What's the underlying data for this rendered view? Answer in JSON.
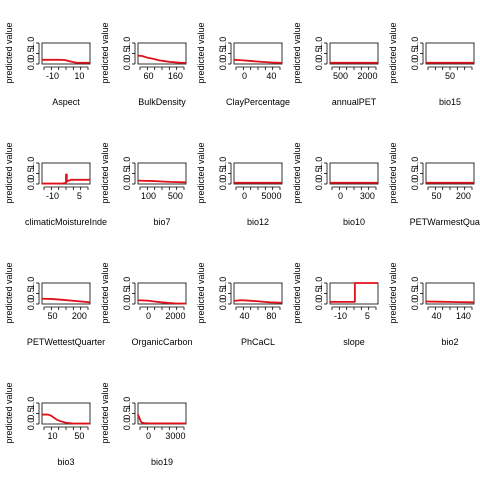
{
  "ylabel": "predicted value",
  "y_ticks": [
    "0.0",
    "0.5",
    "1.0"
  ],
  "colors": {
    "curve": "#e0101a",
    "axis": "#000000"
  },
  "chart_data": [
    {
      "type": "line",
      "xlabel": "Aspect",
      "ylabel": "predicted value",
      "ylim": [
        0,
        1
      ],
      "x_ticks": [
        "-10",
        "10"
      ],
      "xlim": [
        -20,
        22
      ],
      "x": [
        -20,
        -10,
        -5,
        0,
        5,
        10,
        15,
        22
      ],
      "y": [
        0.2,
        0.2,
        0.2,
        0.19,
        0.12,
        0.06,
        0.06,
        0.06
      ]
    },
    {
      "type": "line",
      "xlabel": "BulkDensity",
      "ylabel": "predicted value",
      "ylim": [
        0,
        1
      ],
      "x_ticks": [
        "60",
        "160"
      ],
      "xlim": [
        25,
        200
      ],
      "x": [
        25,
        40,
        60,
        80,
        100,
        120,
        140,
        160,
        180,
        200
      ],
      "y": [
        0.4,
        0.38,
        0.3,
        0.25,
        0.18,
        0.14,
        0.1,
        0.08,
        0.06,
        0.05
      ]
    },
    {
      "type": "line",
      "xlabel": "ClayPercentage",
      "ylabel": "predicted value",
      "ylim": [
        0,
        1
      ],
      "x_ticks": [
        "0",
        "40"
      ],
      "xlim": [
        -15,
        80
      ],
      "x": [
        -15,
        0,
        20,
        40,
        60,
        80
      ],
      "y": [
        0.2,
        0.18,
        0.14,
        0.1,
        0.07,
        0.05
      ]
    },
    {
      "type": "line",
      "xlabel": "annualPET",
      "ylabel": "predicted value",
      "ylim": [
        0,
        1
      ],
      "x_ticks": [
        "500",
        "2000"
      ],
      "xlim": [
        0,
        2400
      ],
      "x": [
        0,
        600,
        1200,
        1800,
        2400
      ],
      "y": [
        0.06,
        0.06,
        0.06,
        0.06,
        0.06
      ]
    },
    {
      "type": "line",
      "xlabel": "bio15",
      "ylabel": "predicted value",
      "ylim": [
        0,
        1
      ],
      "x_ticks": [
        "50"
      ],
      "xlim": [
        0,
        140
      ],
      "x": [
        0,
        35,
        70,
        105,
        140
      ],
      "y": [
        0.06,
        0.06,
        0.06,
        0.06,
        0.06
      ]
    },
    {
      "type": "line",
      "xlabel": "climaticMoistureInde",
      "ylabel": "predicted value",
      "ylim": [
        0,
        1
      ],
      "x_ticks": [
        "-10",
        "5"
      ],
      "xlim": [
        -18,
        12
      ],
      "x": [
        -18,
        -10,
        -5,
        -3,
        -3,
        -2.5,
        -2.5,
        0,
        5,
        12
      ],
      "y": [
        0.02,
        0.02,
        0.03,
        0.05,
        0.45,
        0.45,
        0.12,
        0.2,
        0.2,
        0.2
      ]
    },
    {
      "type": "line",
      "xlabel": "bio7",
      "ylabel": "predicted value",
      "ylim": [
        0,
        1
      ],
      "x_ticks": [
        "100",
        "500"
      ],
      "xlim": [
        0,
        600
      ],
      "x": [
        0,
        100,
        200,
        300,
        400,
        500,
        600
      ],
      "y": [
        0.16,
        0.15,
        0.14,
        0.12,
        0.1,
        0.09,
        0.08
      ]
    },
    {
      "type": "line",
      "xlabel": "bio12",
      "ylabel": "predicted value",
      "ylim": [
        0,
        1
      ],
      "x_ticks": [
        "0",
        "5000"
      ],
      "xlim": [
        -1500,
        8500
      ],
      "x": [
        -1500,
        1000,
        3500,
        6000,
        8500
      ],
      "y": [
        0.06,
        0.06,
        0.06,
        0.06,
        0.06
      ]
    },
    {
      "type": "line",
      "xlabel": "bio10",
      "ylabel": "predicted value",
      "ylim": [
        0,
        1
      ],
      "x_ticks": [
        "0",
        "300"
      ],
      "xlim": [
        -100,
        450
      ],
      "x": [
        -100,
        50,
        200,
        350,
        450
      ],
      "y": [
        0.06,
        0.06,
        0.06,
        0.06,
        0.06
      ]
    },
    {
      "type": "line",
      "xlabel": "PETWarmestQuarte",
      "ylabel": "predicted value",
      "ylim": [
        0,
        1
      ],
      "x_ticks": [
        "50",
        "200"
      ],
      "xlim": [
        0,
        280
      ],
      "x": [
        0,
        70,
        140,
        210,
        280
      ],
      "y": [
        0.06,
        0.06,
        0.06,
        0.06,
        0.06
      ]
    },
    {
      "type": "line",
      "xlabel": "PETWettestQuarter",
      "ylabel": "predicted value",
      "ylim": [
        0,
        1
      ],
      "x_ticks": [
        "50",
        "200"
      ],
      "xlim": [
        10,
        220
      ],
      "x": [
        10,
        50,
        100,
        150,
        200,
        220
      ],
      "y": [
        0.25,
        0.24,
        0.2,
        0.15,
        0.1,
        0.08
      ]
    },
    {
      "type": "line",
      "xlabel": "OrganicCarbon",
      "ylabel": "predicted value",
      "ylim": [
        0,
        1
      ],
      "x_ticks": [
        "0",
        "2000"
      ],
      "xlim": [
        -700,
        2800
      ],
      "x": [
        -700,
        0,
        500,
        1000,
        1500,
        2000,
        2800
      ],
      "y": [
        0.18,
        0.16,
        0.12,
        0.08,
        0.05,
        0.03,
        0.02
      ]
    },
    {
      "type": "line",
      "xlabel": "PhCaCL",
      "ylabel": "predicted value",
      "ylim": [
        0,
        1
      ],
      "x_ticks": [
        "40",
        "80"
      ],
      "xlim": [
        20,
        100
      ],
      "x": [
        20,
        30,
        40,
        50,
        60,
        70,
        80,
        90,
        100
      ],
      "y": [
        0.15,
        0.18,
        0.17,
        0.15,
        0.13,
        0.1,
        0.08,
        0.07,
        0.06
      ]
    },
    {
      "type": "line",
      "xlabel": "slope",
      "ylabel": "predicted value",
      "ylim": [
        0,
        1
      ],
      "x_ticks": [
        "-10",
        "5"
      ],
      "xlim": [
        -15,
        12
      ],
      "x": [
        -15,
        -10,
        -5,
        -1,
        -1,
        5,
        12
      ],
      "y": [
        0.1,
        0.1,
        0.1,
        0.1,
        1.0,
        1.0,
        1.0
      ]
    },
    {
      "type": "line",
      "xlabel": "bio2",
      "ylabel": "predicted value",
      "ylim": [
        0,
        1
      ],
      "x_ticks": [
        "40",
        "140"
      ],
      "xlim": [
        20,
        190
      ],
      "x": [
        20,
        60,
        100,
        140,
        190
      ],
      "y": [
        0.12,
        0.11,
        0.1,
        0.09,
        0.08
      ]
    },
    {
      "type": "line",
      "xlabel": "bio3",
      "ylabel": "predicted value",
      "ylim": [
        0,
        1
      ],
      "x_ticks": [
        "10",
        "50"
      ],
      "xlim": [
        0,
        80
      ],
      "x": [
        0,
        5,
        10,
        15,
        20,
        25,
        30,
        40,
        50,
        60,
        70,
        80
      ],
      "y": [
        0.45,
        0.45,
        0.45,
        0.4,
        0.3,
        0.2,
        0.14,
        0.06,
        0.03,
        0.02,
        0.02,
        0.02
      ]
    },
    {
      "type": "line",
      "xlabel": "bio19",
      "ylabel": "predicted value",
      "ylim": [
        0,
        1
      ],
      "x_ticks": [
        "0",
        "3000"
      ],
      "xlim": [
        -300,
        5000
      ],
      "x": [
        -300,
        -150,
        0,
        150,
        400,
        1000,
        2500,
        5000
      ],
      "y": [
        0.45,
        0.3,
        0.12,
        0.06,
        0.04,
        0.03,
        0.03,
        0.03
      ]
    }
  ]
}
